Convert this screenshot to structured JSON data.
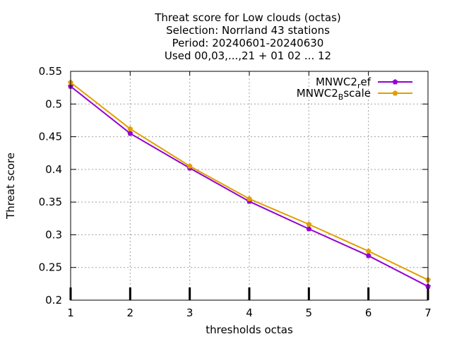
{
  "chart_data": {
    "type": "line",
    "title_lines": [
      "Threat score  for Low clouds (octas)",
      "Selection: Norrland     43 stations",
      "Period: 20240601-20240630",
      "Used 00,03,...,21 + 01 02 ... 12"
    ],
    "xlabel": "thresholds octas",
    "ylabel": "Threat score",
    "xlim": [
      1,
      7
    ],
    "ylim": [
      0.2,
      0.55
    ],
    "x_ticks": [
      "1",
      "2",
      "3",
      "4",
      "5",
      "6",
      "7"
    ],
    "y_ticks": [
      "0.2",
      "0.25",
      "0.3",
      "0.35",
      "0.4",
      "0.45",
      "0.5",
      "0.55"
    ],
    "grid": true,
    "legend_position": "top-right",
    "x": [
      1,
      2,
      3,
      4,
      5,
      6,
      7
    ],
    "series": [
      {
        "name": "MNWC2_ref",
        "legend_main": "MNWC2",
        "legend_sub": "r",
        "legend_rest": "ef",
        "color": "#9400d3",
        "values": [
          0.527,
          0.455,
          0.402,
          0.351,
          0.309,
          0.268,
          0.221
        ]
      },
      {
        "name": "MNWC2_Bscale",
        "legend_main": "MNWC2",
        "legend_sub": "B",
        "legend_rest": "scale",
        "color": "#e0a000",
        "values": [
          0.533,
          0.462,
          0.405,
          0.355,
          0.316,
          0.275,
          0.231
        ]
      }
    ]
  }
}
